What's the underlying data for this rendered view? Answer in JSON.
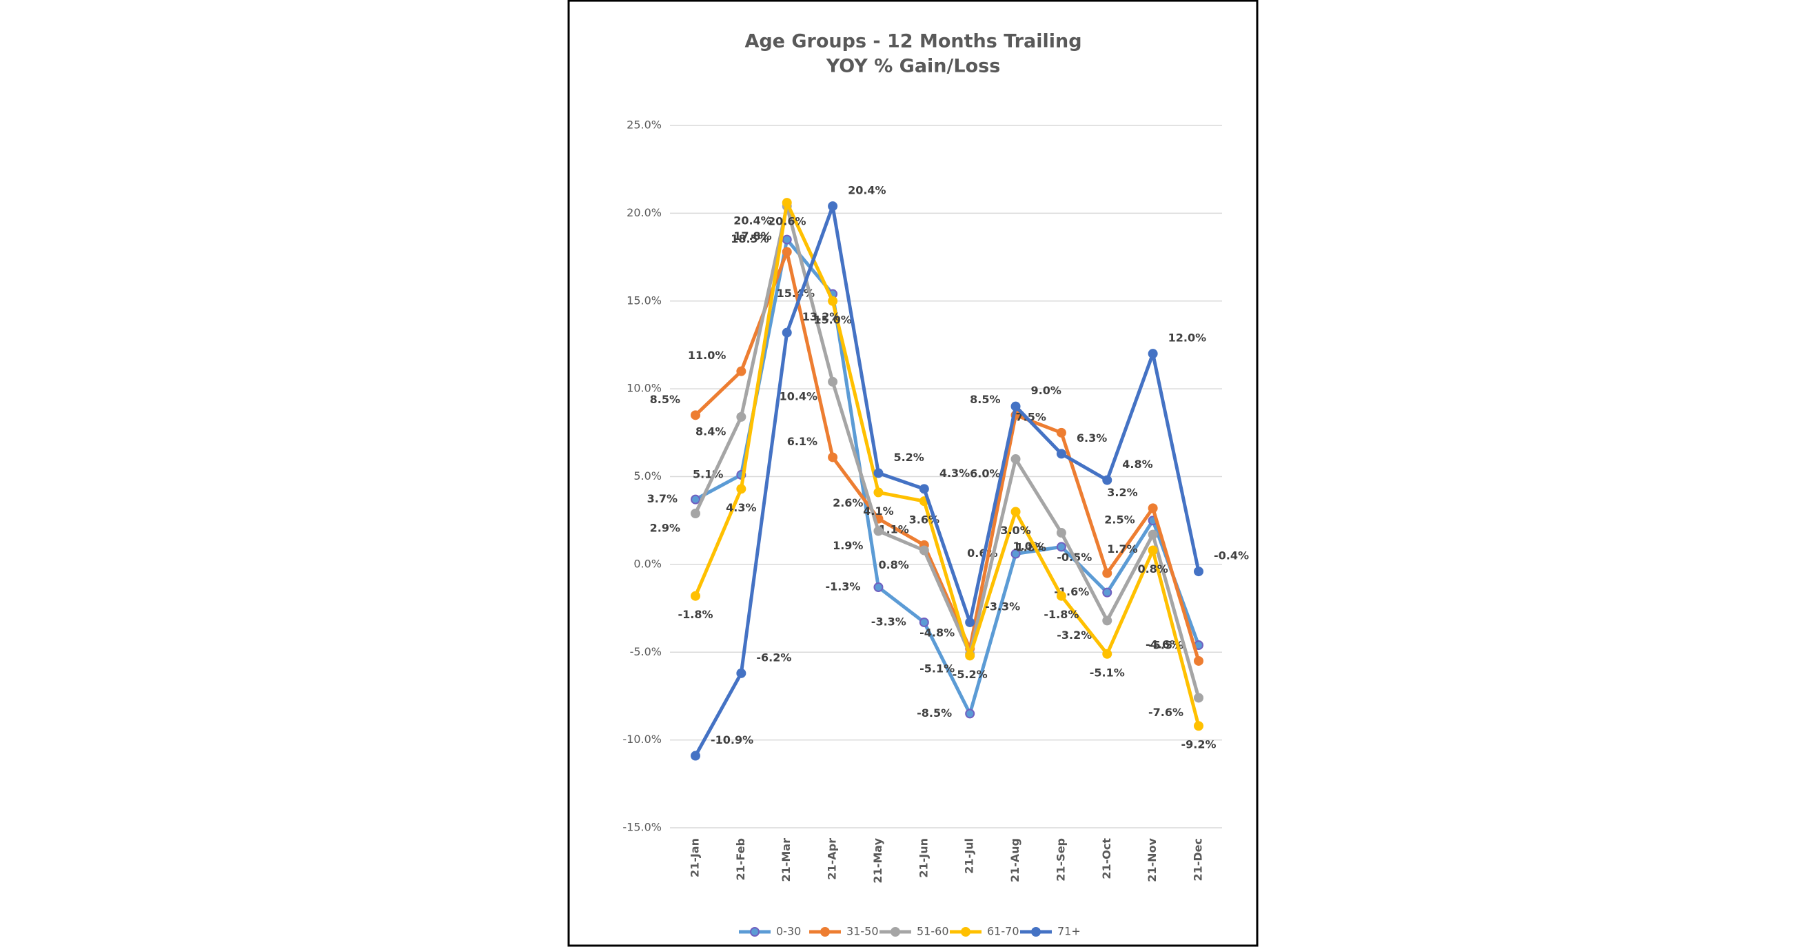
{
  "chart_data": {
    "type": "line",
    "title": "Age Groups - 12 Months Trailing",
    "subtitle": "YOY % Gain/Loss",
    "categories": [
      "21-Jan",
      "21-Feb",
      "21-Mar",
      "21-Apr",
      "21-May",
      "21-Jun",
      "21-Jul",
      "21-Aug",
      "21-Sep",
      "21-Oct",
      "21-Nov",
      "21-Dec"
    ],
    "ylim": [
      -15,
      25
    ],
    "yticks": [
      {
        "value": -15,
        "label": "-15.0%"
      },
      {
        "value": -10,
        "label": "-10.0%"
      },
      {
        "value": -5,
        "label": "-5.0%"
      },
      {
        "value": 0,
        "label": "0.0%"
      },
      {
        "value": 5,
        "label": "5.0%"
      },
      {
        "value": 10,
        "label": "10.0%"
      },
      {
        "value": 15,
        "label": "15.0%"
      },
      {
        "value": 20,
        "label": "20.0%"
      },
      {
        "value": 25,
        "label": "25.0%"
      }
    ],
    "grid": true,
    "legend": "bottom",
    "series": [
      {
        "name": "0-30",
        "color": "#5b9bd5",
        "values": [
          3.7,
          5.1,
          18.5,
          15.4,
          -1.3,
          -3.3,
          -8.5,
          0.6,
          1.0,
          -1.6,
          2.5,
          -4.6
        ],
        "value_labels": [
          "3.7%",
          "5.1%",
          "18.5%",
          "15.4%",
          "-1.3%",
          "-3.3%",
          "-8.5%",
          "0.6%",
          "1.0%",
          "-1.6%",
          "2.5%",
          "-4.6%"
        ]
      },
      {
        "name": "31-50",
        "color": "#ed7d31",
        "values": [
          8.5,
          11.0,
          17.8,
          6.1,
          2.6,
          1.1,
          -4.8,
          8.5,
          7.5,
          -0.5,
          3.2,
          -5.5
        ],
        "value_labels": [
          "8.5%",
          "11.0%",
          "17.8%",
          "6.1%",
          "2.6%",
          "1.1%",
          "-4.8%",
          "8.5%",
          "7.5%",
          "-0.5%",
          "3.2%",
          "-5.5%"
        ]
      },
      {
        "name": "51-60",
        "color": "#a5a5a5",
        "values": [
          2.9,
          8.4,
          20.4,
          10.4,
          1.9,
          0.8,
          -5.1,
          6.0,
          1.8,
          -3.2,
          1.7,
          -7.6
        ],
        "value_labels": [
          "2.9%",
          "8.4%",
          "20.4%",
          "10.4%",
          "1.9%",
          "0.8%",
          "-5.1%",
          "6.0%",
          "1.8%",
          "-3.2%",
          "1.7%",
          "-7.6%"
        ]
      },
      {
        "name": "61-70",
        "color": "#ffc000",
        "values": [
          -1.8,
          4.3,
          20.6,
          15.0,
          4.1,
          3.6,
          -5.2,
          3.0,
          -1.8,
          -5.1,
          0.8,
          -9.2
        ],
        "value_labels": [
          "-1.8%",
          "4.3%",
          "20.6%",
          "15.0%",
          "4.1%",
          "3.6%",
          "-5.2%",
          "3.0%",
          "-1.8%",
          "-5.1%",
          "0.8%",
          "-9.2%"
        ]
      },
      {
        "name": "71+",
        "color": "#4472c4",
        "values": [
          -10.9,
          -6.2,
          13.2,
          20.4,
          5.2,
          4.3,
          -3.3,
          9.0,
          6.3,
          4.8,
          12.0,
          -0.4
        ],
        "value_labels": [
          "-10.9%",
          "-6.2%",
          "13.2%",
          "20.4%",
          "5.2%",
          "4.3%",
          "-3.3%",
          "9.0%",
          "6.3%",
          "4.8%",
          "12.0%",
          "-0.4%"
        ]
      }
    ]
  }
}
